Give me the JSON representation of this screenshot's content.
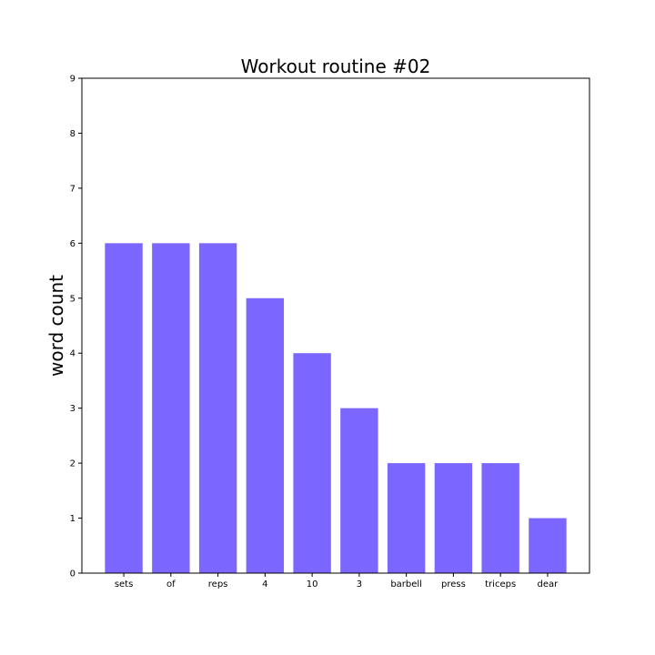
{
  "chart_data": {
    "type": "bar",
    "title": "Workout routine #02",
    "xlabel": "",
    "ylabel": "word count",
    "categories": [
      "sets",
      "of",
      "reps",
      "4",
      "10",
      "3",
      "barbell",
      "press",
      "triceps",
      "dear"
    ],
    "values": [
      6,
      6,
      6,
      5,
      4,
      3,
      2,
      2,
      2,
      1
    ],
    "ylim": [
      0,
      9
    ],
    "yticks": [
      0,
      1,
      2,
      3,
      4,
      5,
      6,
      7,
      8,
      9
    ],
    "grid": false,
    "bar_color": "#7b66ff"
  }
}
